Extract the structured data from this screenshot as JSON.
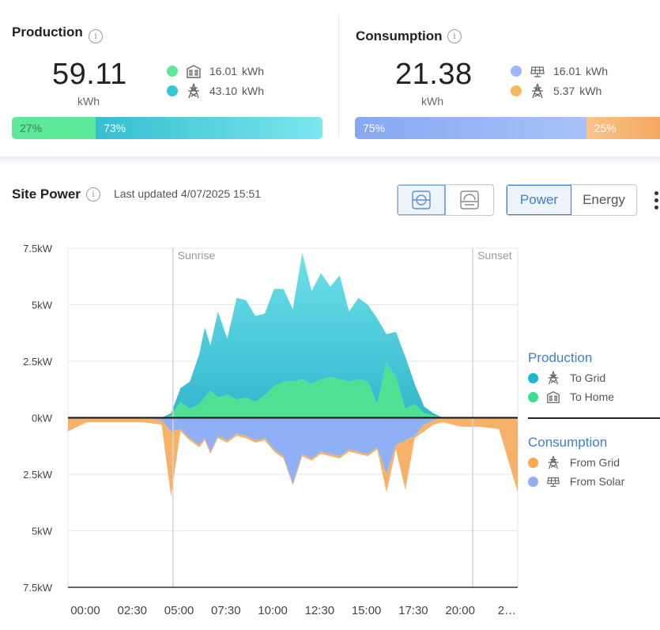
{
  "production": {
    "title": "Production",
    "total": "59.11",
    "unit": "kWh",
    "home_value": "16.01",
    "home_unit": "kWh",
    "grid_value": "43.10",
    "grid_unit": "kWh",
    "home_pct": "27%",
    "grid_pct": "73%",
    "home_fraction": 0.27,
    "colors": {
      "home": "#5de89a",
      "grid": "#38c7d4"
    }
  },
  "consumption": {
    "title": "Consumption",
    "total": "21.38",
    "unit": "kWh",
    "solar_value": "16.01",
    "solar_unit": "kWh",
    "grid_value": "5.37",
    "grid_unit": "kWh",
    "solar_pct": "75%",
    "grid_pct": "25%",
    "solar_fraction": 0.75,
    "colors": {
      "solar": "#8fb0f5",
      "grid": "#f6b269"
    }
  },
  "site_power": {
    "title": "Site Power",
    "last_updated": "Last updated 4/07/2025 15:51",
    "mode_power": "Power",
    "mode_energy": "Energy",
    "active_mode": "Power"
  },
  "legend": {
    "production_heading": "Production",
    "to_grid": "To Grid",
    "to_home": "To Home",
    "consumption_heading": "Consumption",
    "from_grid": "From Grid",
    "from_solar": "From Solar"
  },
  "chart_data": {
    "type": "area",
    "title": "Site Power",
    "ylim": [
      -7.5,
      7.5
    ],
    "y_ticks": [
      7.5,
      5,
      2.5,
      0,
      -2.5,
      -5,
      -7.5
    ],
    "y_tick_labels": [
      "7.5kW",
      "5kW",
      "2.5kW",
      "0kW",
      "2.5kW",
      "5kW",
      "7.5kW"
    ],
    "x_range_hours": [
      0,
      24
    ],
    "x_tick_hours": [
      0,
      2.5,
      5,
      7.5,
      10,
      12.5,
      15,
      17.5,
      20,
      22.5
    ],
    "x_tick_labels": [
      "00:00",
      "02:30",
      "05:00",
      "07:30",
      "10:00",
      "12:30",
      "15:00",
      "17:30",
      "20:00",
      "2…"
    ],
    "markers": [
      {
        "label": "Sunrise",
        "hour": 5.6
      },
      {
        "label": "Sunset",
        "hour": 21.6
      }
    ],
    "hours": [
      0,
      1,
      2,
      3,
      4,
      5,
      5.5,
      6,
      6.5,
      7,
      7.3,
      7.6,
      8,
      8.5,
      9,
      9.5,
      10,
      10.5,
      11,
      11.5,
      12,
      12.5,
      13,
      13.5,
      14,
      14.5,
      15,
      15.5,
      16,
      16.5,
      17,
      17.5,
      18,
      18.5,
      19,
      19.5,
      20,
      20.5,
      21,
      22,
      23,
      24
    ],
    "series": [
      {
        "name": "To Home",
        "color": "#4fe094",
        "values": [
          0,
          0,
          0,
          0,
          0,
          0,
          0.1,
          0.7,
          0.4,
          0.6,
          0.9,
          1.2,
          0.9,
          1.0,
          0.8,
          0.9,
          0.7,
          1.0,
          1.4,
          1.6,
          1.6,
          1.7,
          1.5,
          1.7,
          1.8,
          1.7,
          1.6,
          1.7,
          1.6,
          0.6,
          2.4,
          1.8,
          0.4,
          0.6,
          0.2,
          0.1,
          0,
          0,
          0,
          0,
          0,
          0
        ]
      },
      {
        "name": "To Grid",
        "color": "#4bd0dd",
        "values": [
          0,
          0,
          0,
          0,
          0,
          0,
          0.1,
          0.6,
          1.2,
          2.2,
          3.1,
          2.0,
          3.8,
          2.5,
          4.5,
          4.3,
          3.8,
          3.6,
          4.3,
          4.1,
          3.2,
          5.6,
          4.1,
          4.7,
          4.0,
          4.6,
          3.1,
          3.6,
          3.4,
          3.8,
          1.3,
          2.0,
          2.3,
          0.9,
          0.3,
          0.1,
          0,
          0,
          0,
          0,
          0,
          0
        ]
      },
      {
        "name": "From Solar",
        "color": "#8fb0f5",
        "values": [
          0,
          0,
          0,
          0,
          0,
          -0.1,
          -0.6,
          -0.5,
          -0.9,
          -1.2,
          -0.9,
          -1.5,
          -0.8,
          -1.0,
          -0.7,
          -0.8,
          -1.0,
          -0.9,
          -1.4,
          -1.7,
          -2.9,
          -1.6,
          -1.8,
          -1.5,
          -1.6,
          -1.7,
          -1.4,
          -1.5,
          -1.6,
          -1.3,
          -2.5,
          -1.2,
          -1.0,
          -0.8,
          -0.3,
          -0.1,
          0,
          0,
          0,
          0,
          0,
          0
        ]
      },
      {
        "name": "From Grid",
        "color": "#f6b269",
        "values": [
          -0.6,
          -0.2,
          -0.2,
          -0.2,
          -0.2,
          -0.2,
          -2.9,
          -0.1,
          -0.1,
          -0.1,
          -0.1,
          -0.1,
          -0.1,
          -0.1,
          -0.1,
          -0.1,
          -0.1,
          -0.1,
          -0.1,
          -0.1,
          -0.1,
          -0.1,
          -0.1,
          -0.1,
          -0.1,
          -0.1,
          -0.1,
          -0.1,
          -0.1,
          -0.1,
          -0.8,
          -0.2,
          -2.2,
          -0.1,
          -0.3,
          -0.2,
          -0.2,
          -0.3,
          -0.4,
          -0.4,
          -0.5,
          -3.3
        ]
      }
    ]
  }
}
